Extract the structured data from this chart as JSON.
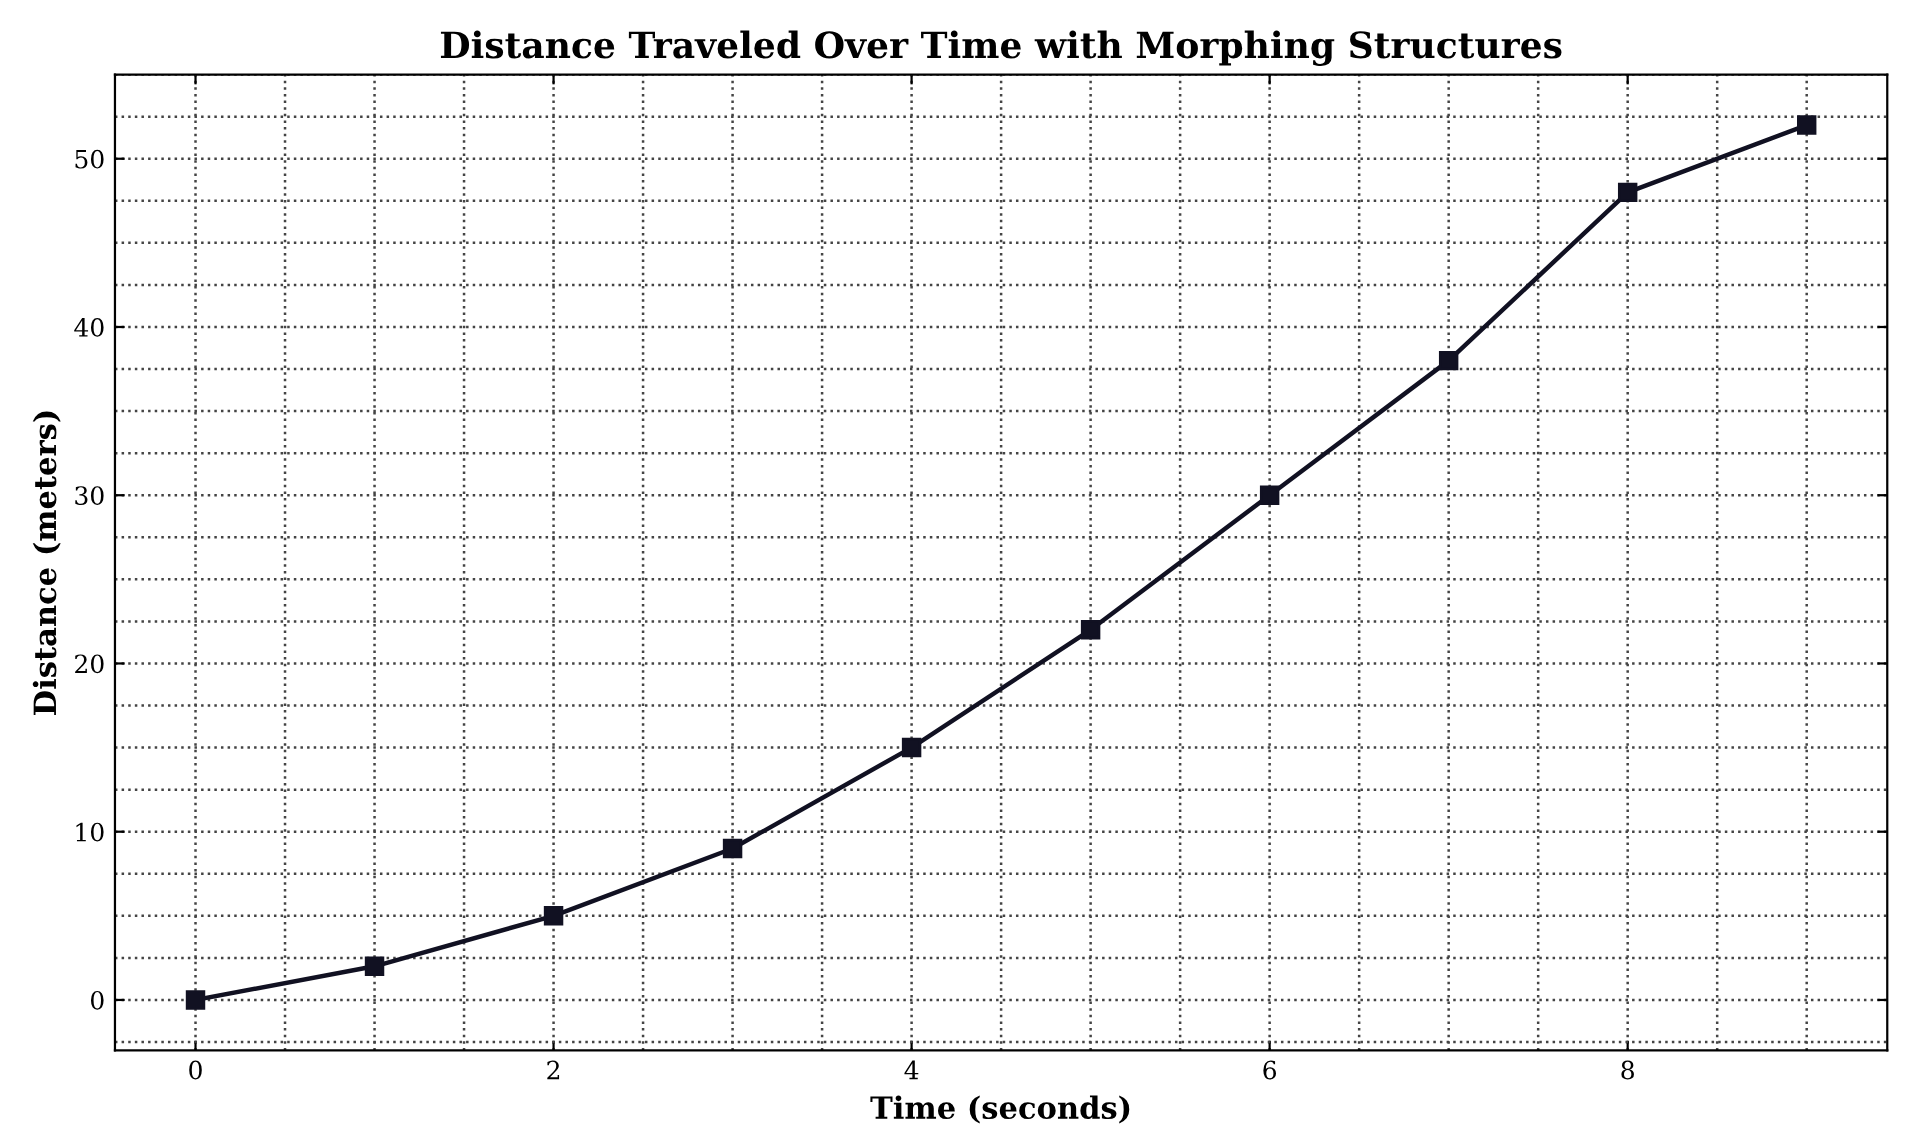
{
  "chart_data": {
    "type": "line",
    "title": "Distance Traveled Over Time with Morphing Structures",
    "xlabel": "Time (seconds)",
    "ylabel": "Distance (meters)",
    "x": [
      0,
      1,
      2,
      3,
      4,
      5,
      6,
      7,
      8,
      9
    ],
    "series": [
      {
        "color": "#111122",
        "values": [
          0,
          2,
          5,
          9,
          15,
          22,
          30,
          38,
          48,
          52
        ]
      }
    ],
    "xlim": [
      -0.45,
      9.45
    ],
    "ylim": [
      -3,
      55
    ],
    "xticks": [
      0,
      2,
      4,
      6,
      8
    ],
    "yticks": [
      0,
      10,
      20,
      30,
      40,
      50
    ],
    "grid": true,
    "marker": "square",
    "line_style": "solid"
  }
}
